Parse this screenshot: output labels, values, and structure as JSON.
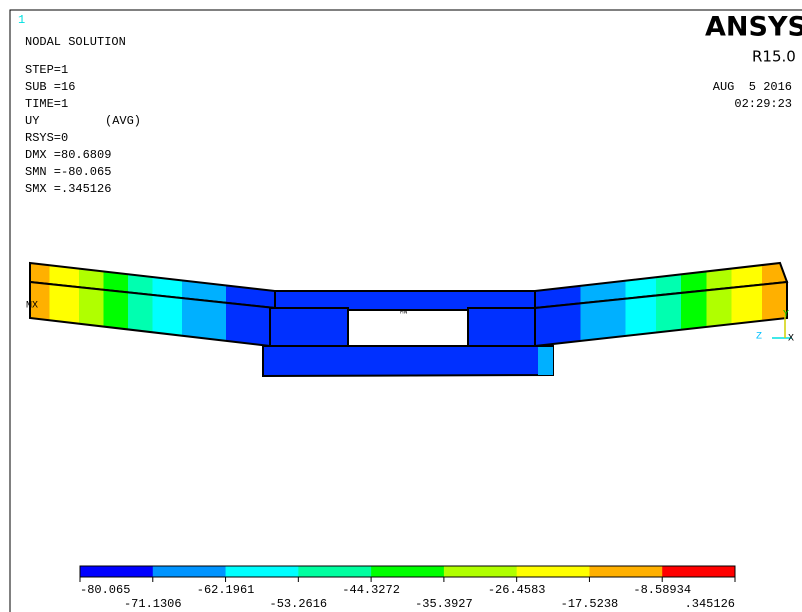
{
  "window_number": "1",
  "title": "NODAL SOLUTION",
  "info": [
    "STEP=1",
    "SUB =16",
    "TIME=1"
  ],
  "result": {
    "label": "UY",
    "avg": "(AVG)"
  },
  "stats": [
    "RSYS=0",
    "DMX =80.6809",
    "SMN =-80.065",
    "SMX =.345126"
  ],
  "logo": {
    "name": "ANSYS",
    "release": "R15.0"
  },
  "date": "AUG  5 2016",
  "time": "02:29:23",
  "markers": {
    "max": "MX",
    "min": "MN"
  },
  "axes": [
    "Y",
    "Z",
    "X"
  ],
  "legend": {
    "labels": [
      "-80.065",
      "-71.1306",
      "-62.1961",
      "-53.2616",
      "-44.3272",
      "-35.3927",
      "-26.4583",
      "-17.5238",
      "-8.58934",
      ".345126"
    ]
  }
}
